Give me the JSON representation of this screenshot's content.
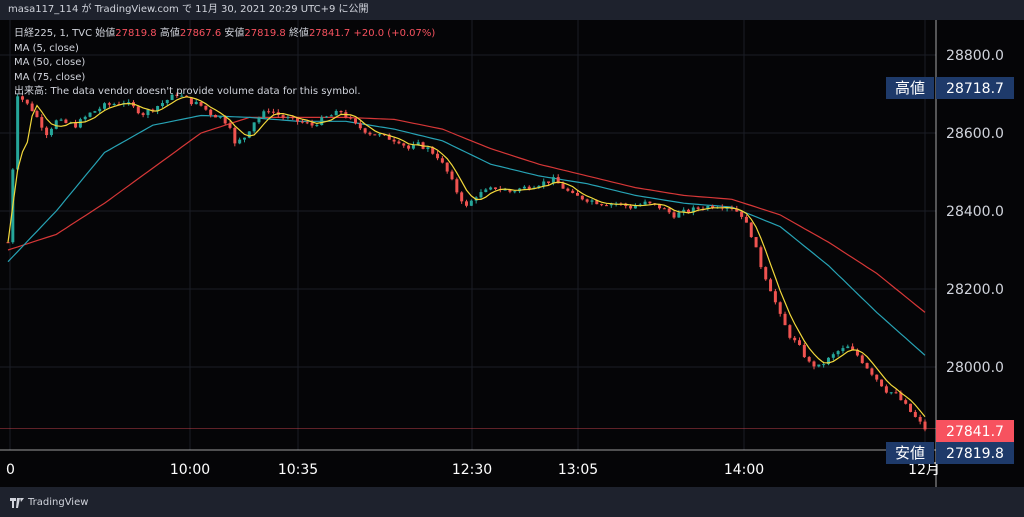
{
  "header": {
    "text": "masa117_114 が TradingView.com で 11月 30, 2021 20:29 UTC+9 に公開"
  },
  "legend": {
    "symbol": "日経225, 1, TVC",
    "open_label": "始値",
    "open": "27819.8",
    "high_label": "高値",
    "high": "27867.6",
    "low_label": "安値",
    "low": "27819.8",
    "close_label": "終値",
    "close": "27841.7",
    "change": "+20.0 (+0.07%)",
    "ma5": "MA (5, close)",
    "ma50": "MA (50, close)",
    "ma75": "MA (75, close)",
    "volume_note": "出来高: The data vendor doesn't provide volume data for this symbol."
  },
  "footer": {
    "brand": "TradingView"
  },
  "chart_data": {
    "type": "candlestick",
    "price_axis": {
      "ticks": [
        28800.0,
        28600.0,
        28400.0,
        28200.0,
        28000.0
      ],
      "labels": [
        "28800.0",
        "28600.0",
        "28400.0",
        "28200.0",
        "28000.0"
      ]
    },
    "time_axis": {
      "labels": [
        "0",
        "10:00",
        "10:35",
        "12:30",
        "13:05",
        "14:00",
        "12月"
      ]
    },
    "markers": {
      "high": {
        "label": "高値",
        "value": "28718.7"
      },
      "current": {
        "value": "27841.7"
      },
      "low": {
        "label": "安値",
        "value": "27819.8"
      }
    },
    "series": [
      {
        "name": "MA (5, close)",
        "color": "#f2d83b"
      },
      {
        "name": "MA (50, close)",
        "color": "#27a3b5"
      },
      {
        "name": "MA (75, close)",
        "color": "#d63737"
      }
    ],
    "colors": {
      "up": "#26a69a",
      "down": "#ef5350",
      "current_tag": "#f7525f",
      "tag_bg": "#1e3a6a"
    },
    "close_path": [
      [
        0,
        28320
      ],
      [
        2,
        28700
      ],
      [
        5,
        28660
      ],
      [
        8,
        28600
      ],
      [
        10,
        28630
      ],
      [
        14,
        28620
      ],
      [
        17,
        28650
      ],
      [
        20,
        28670
      ],
      [
        24,
        28680
      ],
      [
        28,
        28650
      ],
      [
        31,
        28670
      ],
      [
        35,
        28700
      ],
      [
        38,
        28680
      ],
      [
        40,
        28670
      ],
      [
        42,
        28650
      ],
      [
        44,
        28640
      ],
      [
        46,
        28620
      ],
      [
        47,
        28570
      ],
      [
        49,
        28590
      ],
      [
        51,
        28630
      ],
      [
        54,
        28660
      ],
      [
        57,
        28640
      ],
      [
        60,
        28630
      ],
      [
        63,
        28620
      ],
      [
        66,
        28640
      ],
      [
        69,
        28655
      ],
      [
        72,
        28620
      ],
      [
        75,
        28600
      ],
      [
        78,
        28590
      ],
      [
        81,
        28580
      ],
      [
        83,
        28560
      ],
      [
        85,
        28570
      ],
      [
        87,
        28560
      ],
      [
        89,
        28540
      ],
      [
        91,
        28500
      ],
      [
        93,
        28450
      ],
      [
        95,
        28410
      ],
      [
        97,
        28440
      ],
      [
        99,
        28450
      ],
      [
        101,
        28460
      ],
      [
        104,
        28450
      ],
      [
        107,
        28460
      ],
      [
        110,
        28470
      ],
      [
        113,
        28480
      ],
      [
        115,
        28460
      ],
      [
        117,
        28440
      ],
      [
        120,
        28430
      ],
      [
        123,
        28420
      ],
      [
        126,
        28420
      ],
      [
        129,
        28410
      ],
      [
        132,
        28420
      ],
      [
        135,
        28410
      ],
      [
        138,
        28390
      ],
      [
        141,
        28400
      ],
      [
        144,
        28410
      ],
      [
        147,
        28415
      ],
      [
        150,
        28410
      ],
      [
        152,
        28390
      ],
      [
        154,
        28340
      ],
      [
        156,
        28260
      ],
      [
        158,
        28200
      ],
      [
        160,
        28130
      ],
      [
        162,
        28080
      ],
      [
        164,
        28050
      ],
      [
        166,
        28010
      ],
      [
        168,
        28000
      ],
      [
        170,
        28020
      ],
      [
        172,
        28040
      ],
      [
        174,
        28050
      ],
      [
        176,
        28030
      ],
      [
        178,
        28000
      ],
      [
        180,
        27970
      ],
      [
        182,
        27940
      ],
      [
        184,
        27930
      ],
      [
        186,
        27900
      ],
      [
        188,
        27870
      ],
      [
        190,
        27842
      ]
    ],
    "ma50_path": [
      [
        0,
        28270
      ],
      [
        10,
        28400
      ],
      [
        20,
        28550
      ],
      [
        30,
        28620
      ],
      [
        40,
        28645
      ],
      [
        50,
        28640
      ],
      [
        60,
        28630
      ],
      [
        70,
        28630
      ],
      [
        80,
        28610
      ],
      [
        90,
        28580
      ],
      [
        100,
        28520
      ],
      [
        110,
        28490
      ],
      [
        120,
        28470
      ],
      [
        130,
        28440
      ],
      [
        140,
        28420
      ],
      [
        150,
        28410
      ],
      [
        160,
        28360
      ],
      [
        170,
        28260
      ],
      [
        180,
        28140
      ],
      [
        190,
        28030
      ]
    ],
    "ma75_path": [
      [
        0,
        28300
      ],
      [
        10,
        28340
      ],
      [
        20,
        28420
      ],
      [
        30,
        28510
      ],
      [
        40,
        28600
      ],
      [
        50,
        28640
      ],
      [
        60,
        28640
      ],
      [
        70,
        28640
      ],
      [
        80,
        28635
      ],
      [
        90,
        28610
      ],
      [
        100,
        28560
      ],
      [
        110,
        28520
      ],
      [
        120,
        28490
      ],
      [
        130,
        28460
      ],
      [
        140,
        28440
      ],
      [
        150,
        28430
      ],
      [
        160,
        28390
      ],
      [
        170,
        28320
      ],
      [
        180,
        28240
      ],
      [
        190,
        28140
      ]
    ]
  }
}
